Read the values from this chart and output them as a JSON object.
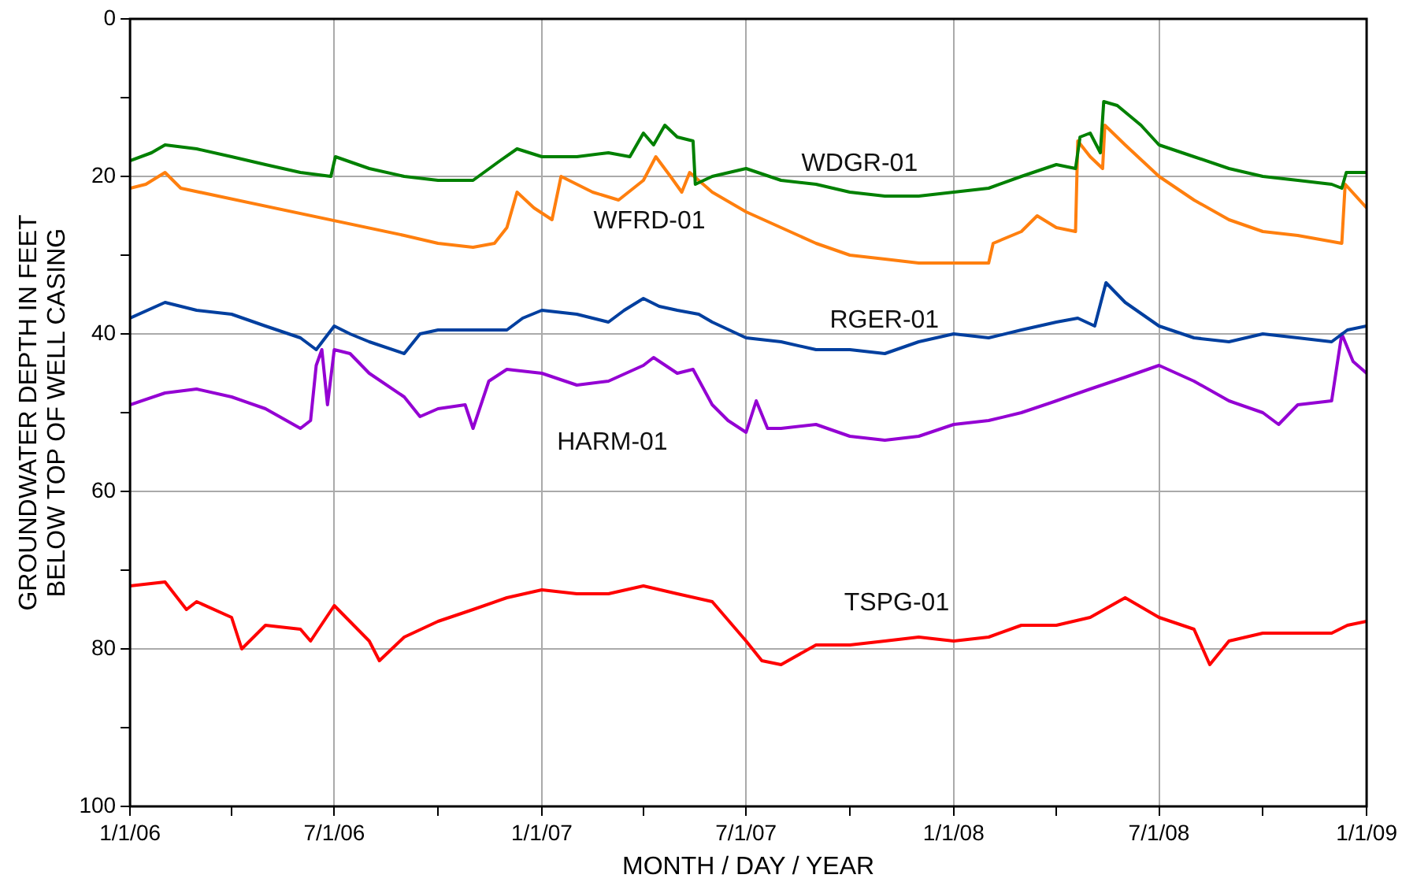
{
  "chart_data": {
    "type": "line",
    "xlabel": "MONTH / DAY / YEAR",
    "ylabel": "GROUNDWATER DEPTH IN FEET\nBELOW TOP OF WELL CASING",
    "xlim": [
      "2006-01-01",
      "2009-01-01"
    ],
    "xticks": [
      {
        "value": "2006-01-01",
        "label": "1/1/06"
      },
      {
        "value": "2006-04-01",
        "label": null
      },
      {
        "value": "2006-07-01",
        "label": "7/1/06"
      },
      {
        "value": "2006-10-01",
        "label": null
      },
      {
        "value": "2007-01-01",
        "label": "1/1/07"
      },
      {
        "value": "2007-04-01",
        "label": null
      },
      {
        "value": "2007-07-01",
        "label": "7/1/07"
      },
      {
        "value": "2007-10-01",
        "label": null
      },
      {
        "value": "2008-01-01",
        "label": "1/1/08"
      },
      {
        "value": "2008-04-01",
        "label": null
      },
      {
        "value": "2008-07-01",
        "label": "7/1/08"
      },
      {
        "value": "2008-10-01",
        "label": null
      },
      {
        "value": "2009-01-01",
        "label": "1/1/09"
      }
    ],
    "ylim": [
      100,
      0
    ],
    "yticks": [
      0,
      {
        "value": 10,
        "label": null
      },
      20,
      {
        "value": 30,
        "label": null
      },
      40,
      {
        "value": 50,
        "label": null
      },
      60,
      {
        "value": 70,
        "label": null
      },
      80,
      {
        "value": 90,
        "label": null
      },
      100
    ],
    "grid": true,
    "legend": false,
    "marker": "none",
    "line_style": "solid",
    "series": [
      {
        "name": "WDGR-01",
        "color": "#008000",
        "x": [
          "2006-01-01",
          "2006-01-20",
          "2006-02-01",
          "2006-03-01",
          "2006-04-01",
          "2006-05-01",
          "2006-06-01",
          "2006-06-28",
          "2006-07-02",
          "2006-08-01",
          "2006-09-01",
          "2006-10-01",
          "2006-11-01",
          "2006-11-25",
          "2006-12-10",
          "2007-01-01",
          "2007-02-01",
          "2007-03-01",
          "2007-03-20",
          "2007-04-01",
          "2007-04-10",
          "2007-04-20",
          "2007-05-01",
          "2007-05-15",
          "2007-05-17",
          "2007-06-01",
          "2007-07-01",
          "2007-08-01",
          "2007-09-01",
          "2007-10-01",
          "2007-11-01",
          "2007-12-01",
          "2008-01-01",
          "2008-02-01",
          "2008-03-01",
          "2008-04-01",
          "2008-04-18",
          "2008-04-22",
          "2008-05-01",
          "2008-05-10",
          "2008-05-13",
          "2008-05-25",
          "2008-06-15",
          "2008-07-01",
          "2008-08-01",
          "2008-09-01",
          "2008-10-01",
          "2008-11-01",
          "2008-12-01",
          "2008-12-10",
          "2008-12-14",
          "2009-01-01"
        ],
        "values": [
          18,
          17,
          16,
          16.5,
          17.5,
          18.5,
          19.5,
          20,
          17.5,
          19,
          20,
          20.5,
          20.5,
          18,
          16.5,
          17.5,
          17.5,
          17,
          17.5,
          14.5,
          16,
          13.5,
          15,
          15.5,
          21,
          20,
          19,
          20.5,
          21,
          22,
          22.5,
          22.5,
          22,
          21.5,
          20,
          18.5,
          19,
          15,
          14.5,
          17,
          10.5,
          11,
          13.5,
          16,
          17.5,
          19,
          20,
          20.5,
          21,
          21.5,
          19.5,
          19.5
        ]
      },
      {
        "name": "WFRD-01",
        "color": "#ff7f0e",
        "x": [
          "2006-01-01",
          "2006-01-15",
          "2006-02-01",
          "2006-02-15",
          "2006-09-01",
          "2006-10-01",
          "2006-11-01",
          "2006-11-20",
          "2006-12-01",
          "2006-12-10",
          "2006-12-25",
          "2007-01-10",
          "2007-01-18",
          "2007-02-15",
          "2007-03-10",
          "2007-04-01",
          "2007-04-12",
          "2007-04-25",
          "2007-05-05",
          "2007-05-12",
          "2007-06-01",
          "2007-07-01",
          "2007-08-01",
          "2007-09-01",
          "2007-10-01",
          "2007-11-01",
          "2007-12-01",
          "2008-01-01",
          "2008-02-01",
          "2008-02-05",
          "2008-03-01",
          "2008-03-15",
          "2008-04-01",
          "2008-04-18",
          "2008-04-20",
          "2008-05-01",
          "2008-05-12",
          "2008-05-14",
          "2008-06-01",
          "2008-07-01",
          "2008-08-01",
          "2008-09-01",
          "2008-10-01",
          "2008-11-01",
          "2008-12-10",
          "2008-12-13",
          "2009-01-01"
        ],
        "values": [
          21.5,
          21,
          19.5,
          21.5,
          27.5,
          28.5,
          29,
          28.5,
          26.5,
          22,
          24,
          25.5,
          20,
          22,
          23,
          20.5,
          17.5,
          20,
          22,
          19.5,
          22,
          24.5,
          26.5,
          28.5,
          30,
          30.5,
          31,
          31,
          31,
          28.5,
          27,
          25,
          26.5,
          27,
          15.5,
          17.5,
          19,
          13.5,
          16,
          20,
          23,
          25.5,
          27,
          27.5,
          28.5,
          21,
          24
        ]
      },
      {
        "name": "RGER-01",
        "color": "#003f9f",
        "x": [
          "2006-01-01",
          "2006-02-01",
          "2006-03-01",
          "2006-04-01",
          "2006-05-01",
          "2006-06-01",
          "2006-06-15",
          "2006-07-01",
          "2006-07-15",
          "2006-08-01",
          "2006-09-01",
          "2006-09-15",
          "2006-10-01",
          "2006-11-01",
          "2006-12-01",
          "2006-12-15",
          "2007-01-01",
          "2007-02-01",
          "2007-03-01",
          "2007-03-15",
          "2007-04-01",
          "2007-04-15",
          "2007-05-01",
          "2007-05-20",
          "2007-06-01",
          "2007-07-01",
          "2007-08-01",
          "2007-09-01",
          "2007-10-01",
          "2007-11-01",
          "2007-12-01",
          "2008-01-01",
          "2008-02-01",
          "2008-03-01",
          "2008-04-01",
          "2008-04-20",
          "2008-05-05",
          "2008-05-15",
          "2008-06-01",
          "2008-07-01",
          "2008-08-01",
          "2008-09-01",
          "2008-10-01",
          "2008-11-01",
          "2008-12-01",
          "2008-12-15",
          "2009-01-01"
        ],
        "values": [
          38,
          36,
          37,
          37.5,
          39,
          40.5,
          42,
          39,
          40,
          41,
          42.5,
          40,
          39.5,
          39.5,
          39.5,
          38,
          37,
          37.5,
          38.5,
          37,
          35.5,
          36.5,
          37,
          37.5,
          38.5,
          40.5,
          41,
          42,
          42,
          42.5,
          41,
          40,
          40.5,
          39.5,
          38.5,
          38,
          39,
          33.5,
          36,
          39,
          40.5,
          41,
          40,
          40.5,
          41,
          39.5,
          39
        ]
      },
      {
        "name": "HARM-01",
        "color": "#9400d3",
        "x": [
          "2006-01-01",
          "2006-02-01",
          "2006-03-01",
          "2006-04-01",
          "2006-05-01",
          "2006-06-01",
          "2006-06-10",
          "2006-06-15",
          "2006-06-20",
          "2006-06-25",
          "2006-07-01",
          "2006-07-15",
          "2006-08-01",
          "2006-09-01",
          "2006-09-15",
          "2006-10-01",
          "2006-10-25",
          "2006-11-01",
          "2006-11-15",
          "2006-12-01",
          "2007-01-01",
          "2007-02-01",
          "2007-03-01",
          "2007-04-01",
          "2007-04-10",
          "2007-05-01",
          "2007-05-15",
          "2007-06-01",
          "2007-06-15",
          "2007-07-01",
          "2007-07-10",
          "2007-07-20",
          "2007-08-01",
          "2007-09-01",
          "2007-10-01",
          "2007-11-01",
          "2007-12-01",
          "2008-01-01",
          "2008-02-01",
          "2008-03-01",
          "2008-04-01",
          "2008-05-01",
          "2008-06-01",
          "2008-07-01",
          "2008-08-01",
          "2008-09-01",
          "2008-10-01",
          "2008-10-15",
          "2008-11-01",
          "2008-12-01",
          "2008-12-10",
          "2008-12-20",
          "2009-01-01"
        ],
        "values": [
          49,
          47.5,
          47,
          48,
          49.5,
          52,
          51,
          44,
          42,
          49,
          42,
          42.5,
          45,
          48,
          50.5,
          49.5,
          49,
          52,
          46,
          44.5,
          45,
          46.5,
          46,
          44,
          43,
          45,
          44.5,
          49,
          51,
          52.5,
          48.5,
          52,
          52,
          51.5,
          53,
          53.5,
          53,
          51.5,
          51,
          50,
          48.5,
          47,
          45.5,
          44,
          46,
          48.5,
          50,
          51.5,
          49,
          48.5,
          40,
          43.5,
          45
        ]
      },
      {
        "name": "TSPG-01",
        "color": "#ff0000",
        "x": [
          "2006-01-01",
          "2006-02-01",
          "2006-02-20",
          "2006-03-01",
          "2006-04-01",
          "2006-04-10",
          "2006-05-01",
          "2006-06-01",
          "2006-06-10",
          "2006-07-01",
          "2006-08-01",
          "2006-08-10",
          "2006-09-01",
          "2006-10-01",
          "2006-11-01",
          "2006-12-01",
          "2007-01-01",
          "2007-02-01",
          "2007-03-01",
          "2007-04-01",
          "2007-05-01",
          "2007-06-01",
          "2007-07-01",
          "2007-07-15",
          "2007-08-01",
          "2007-09-01",
          "2007-10-01",
          "2007-11-01",
          "2007-12-01",
          "2008-01-01",
          "2008-02-01",
          "2008-03-01",
          "2008-04-01",
          "2008-05-01",
          "2008-06-01",
          "2008-07-01",
          "2008-08-01",
          "2008-08-15",
          "2008-09-01",
          "2008-10-01",
          "2008-11-01",
          "2008-12-01",
          "2008-12-15",
          "2009-01-01"
        ],
        "values": [
          72,
          71.5,
          75,
          74,
          76,
          80,
          77,
          77.5,
          79,
          74.5,
          79,
          81.5,
          78.5,
          76.5,
          75,
          73.5,
          72.5,
          73,
          73,
          72,
          73,
          74,
          79,
          81.5,
          82,
          79.5,
          79.5,
          79,
          78.5,
          79,
          78.5,
          77,
          77,
          76,
          73.5,
          76,
          77.5,
          82,
          79,
          78,
          78,
          78,
          77,
          76.5
        ]
      }
    ]
  }
}
